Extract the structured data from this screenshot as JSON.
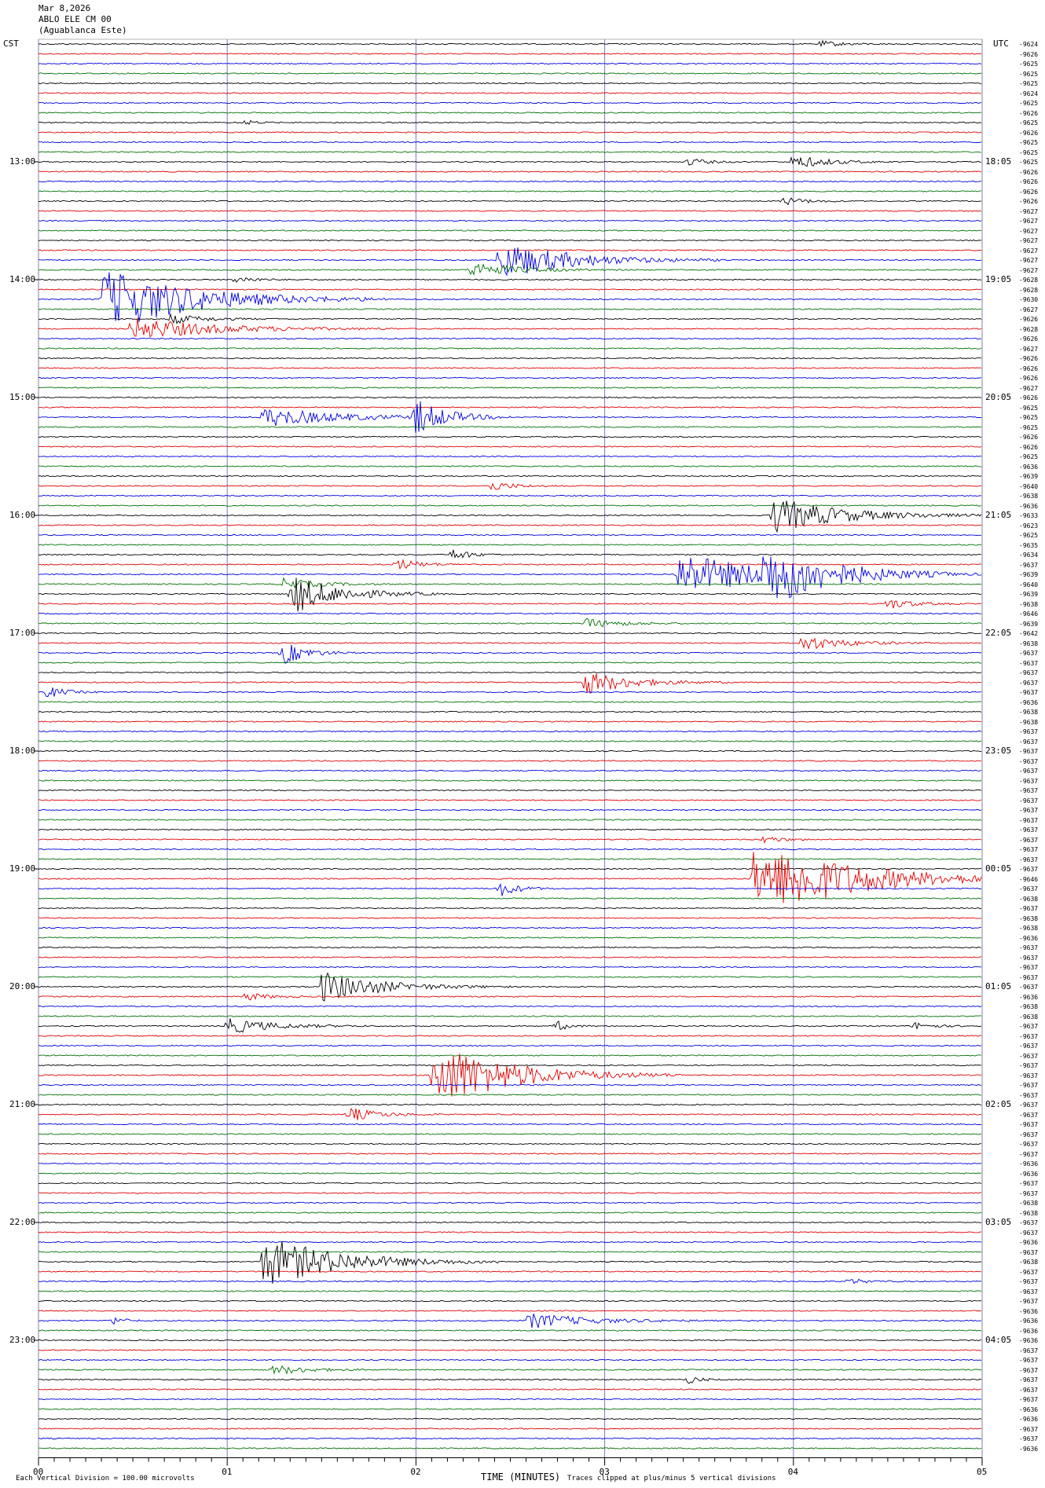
{
  "header": {
    "date": "Mar 8,2026",
    "station": "ABLO ELE CM 00",
    "site": "(Aguablanca Este)"
  },
  "left_timezone": "CST",
  "right_timezone": "UTC",
  "footer": {
    "x_axis_title": "TIME (MINUTES)",
    "scale_note": "Each Vertical Division =  100.00 microvolts",
    "clip_note": "Traces clipped at plus/minus 5 vertical divisions"
  },
  "colors": {
    "trace_cycle": [
      "#000000",
      "#e00000",
      "#0000e0",
      "#007000"
    ],
    "gridline": "#7a7ac0"
  },
  "chart_data": {
    "type": "line",
    "title": "",
    "xlabel": "TIME (MINUTES)",
    "ylabel": "",
    "xlim": [
      0,
      5
    ],
    "x_ticks": [
      "00",
      "01",
      "02",
      "03",
      "04",
      "05"
    ],
    "traces_count": 144,
    "trace_minutes": 5,
    "left_time_labels": [
      "13:00",
      "14:00",
      "15:00",
      "16:00",
      "17:00",
      "18:00",
      "19:00",
      "20:00",
      "21:00",
      "22:00",
      "23:00"
    ],
    "right_time_labels": [
      "18:05",
      "19:05",
      "20:05",
      "21:05",
      "22:05",
      "23:05",
      "00:05",
      "01:05",
      "02:05",
      "03:05",
      "04:05"
    ],
    "label_start_trace": 12,
    "label_every_traces": 12,
    "right_trace_values": [
      "-9624",
      "-9626",
      "-9625",
      "-9625",
      "-9625",
      "-9624",
      "-9625",
      "-9626",
      "-9625",
      "-9626",
      "-9625",
      "-9625",
      "-9625",
      "-9626",
      "-9626",
      "-9626",
      "-9626",
      "-9627",
      "-9627",
      "-9627",
      "-9627",
      "-9627",
      "-9627",
      "-9627",
      "-9628",
      "-9628",
      "-9630",
      "-9627",
      "-9626",
      "-9628",
      "-9626",
      "-9627",
      "-9626",
      "-9626",
      "-9626",
      "-9627",
      "-9626",
      "-9625",
      "-9625",
      "-9625",
      "-9626",
      "-9626",
      "-9625",
      "-9636",
      "-9639",
      "-9640",
      "-9638",
      "-9636",
      "-9633",
      "-9623",
      "-9625",
      "-9635",
      "-9634",
      "-9637",
      "-9639",
      "-9640",
      "-9639",
      "-9638",
      "-9646",
      "-9639",
      "-9642",
      "-9638",
      "-9637",
      "-9637",
      "-9637",
      "-9637",
      "-9637",
      "-9636",
      "-9638",
      "-9638",
      "-9637",
      "-9637",
      "-9637",
      "-9637",
      "-9637",
      "-9637",
      "-9637",
      "-9637",
      "-9637",
      "-9637",
      "-9637",
      "-9637",
      "-9637",
      "-9637",
      "-9637",
      "-9646",
      "-9637",
      "-9638",
      "-9637",
      "-9638",
      "-9638",
      "-9636",
      "-9637",
      "-9637",
      "-9637",
      "-9637",
      "-9637",
      "-9636",
      "-9638",
      "-9638",
      "-9637",
      "-9637",
      "-9637",
      "-9637",
      "-9637",
      "-9637",
      "-9637",
      "-9637",
      "-9637",
      "-9637",
      "-9637",
      "-9637",
      "-9637",
      "-9637",
      "-9636",
      "-9636",
      "-9637",
      "-9637",
      "-9638",
      "-9638",
      "-9637",
      "-9637",
      "-9636",
      "-9637",
      "-9638",
      "-9637",
      "-9637",
      "-9637",
      "-9637",
      "-9636",
      "-9636",
      "-9636",
      "-9636",
      "-9637",
      "-9637",
      "-9637",
      "-9637",
      "-9637",
      "-9637",
      "-9636",
      "-9636",
      "-9637",
      "-9637",
      "-9636"
    ],
    "events": [
      {
        "trace": 0,
        "minute": 4.15,
        "amp": 0.3,
        "dur": 0.4
      },
      {
        "trace": 8,
        "minute": 1.1,
        "amp": 0.25,
        "dur": 0.2
      },
      {
        "trace": 12,
        "minute": 3.45,
        "amp": 0.4,
        "dur": 0.3
      },
      {
        "trace": 12,
        "minute": 4.0,
        "amp": 0.7,
        "dur": 0.6
      },
      {
        "trace": 16,
        "minute": 3.95,
        "amp": 0.4,
        "dur": 0.4
      },
      {
        "trace": 22,
        "minute": 2.45,
        "amp": 2.0,
        "dur": 1.2
      },
      {
        "trace": 23,
        "minute": 2.3,
        "amp": 0.8,
        "dur": 0.8
      },
      {
        "trace": 24,
        "minute": 1.05,
        "amp": 0.4,
        "dur": 0.3
      },
      {
        "trace": 26,
        "minute": 0.35,
        "amp": 3.5,
        "dur": 1.5
      },
      {
        "trace": 28,
        "minute": 0.7,
        "amp": 0.5,
        "dur": 0.6
      },
      {
        "trace": 29,
        "minute": 0.5,
        "amp": 1.2,
        "dur": 1.4
      },
      {
        "trace": 38,
        "minute": 1.2,
        "amp": 1.0,
        "dur": 1.3
      },
      {
        "trace": 38,
        "minute": 2.0,
        "amp": 1.8,
        "dur": 0.5
      },
      {
        "trace": 45,
        "minute": 2.4,
        "amp": 0.5,
        "dur": 0.4
      },
      {
        "trace": 48,
        "minute": 3.9,
        "amp": 1.8,
        "dur": 1.2
      },
      {
        "trace": 52,
        "minute": 2.2,
        "amp": 0.6,
        "dur": 0.3
      },
      {
        "trace": 53,
        "minute": 1.9,
        "amp": 0.6,
        "dur": 0.4
      },
      {
        "trace": 54,
        "minute": 3.4,
        "amp": 2.2,
        "dur": 1.6
      },
      {
        "trace": 54,
        "minute": 3.85,
        "amp": 3.0,
        "dur": 1.0
      },
      {
        "trace": 55,
        "minute": 1.3,
        "amp": 0.6,
        "dur": 0.6
      },
      {
        "trace": 56,
        "minute": 1.35,
        "amp": 2.0,
        "dur": 0.8
      },
      {
        "trace": 57,
        "minute": 4.5,
        "amp": 0.6,
        "dur": 0.4
      },
      {
        "trace": 59,
        "minute": 2.9,
        "amp": 0.5,
        "dur": 0.6
      },
      {
        "trace": 61,
        "minute": 4.05,
        "amp": 0.8,
        "dur": 0.7
      },
      {
        "trace": 62,
        "minute": 1.3,
        "amp": 1.2,
        "dur": 0.4
      },
      {
        "trace": 65,
        "minute": 2.9,
        "amp": 1.2,
        "dur": 0.8
      },
      {
        "trace": 66,
        "minute": 0.05,
        "amp": 0.6,
        "dur": 0.3
      },
      {
        "trace": 81,
        "minute": 3.85,
        "amp": 0.4,
        "dur": 0.3
      },
      {
        "trace": 85,
        "minute": 3.8,
        "amp": 4.5,
        "dur": 1.6
      },
      {
        "trace": 86,
        "minute": 2.45,
        "amp": 0.8,
        "dur": 0.3
      },
      {
        "trace": 96,
        "minute": 1.5,
        "amp": 1.6,
        "dur": 1.0
      },
      {
        "trace": 97,
        "minute": 1.1,
        "amp": 0.4,
        "dur": 0.4
      },
      {
        "trace": 100,
        "minute": 1.0,
        "amp": 0.8,
        "dur": 0.8
      },
      {
        "trace": 100,
        "minute": 2.75,
        "amp": 0.5,
        "dur": 0.2
      },
      {
        "trace": 100,
        "minute": 4.65,
        "amp": 0.4,
        "dur": 0.3
      },
      {
        "trace": 105,
        "minute": 2.1,
        "amp": 3.5,
        "dur": 1.3
      },
      {
        "trace": 109,
        "minute": 1.65,
        "amp": 0.7,
        "dur": 0.5
      },
      {
        "trace": 124,
        "minute": 1.2,
        "amp": 2.6,
        "dur": 1.3
      },
      {
        "trace": 126,
        "minute": 4.3,
        "amp": 0.3,
        "dur": 0.3
      },
      {
        "trace": 130,
        "minute": 0.4,
        "amp": 0.4,
        "dur": 0.2
      },
      {
        "trace": 130,
        "minute": 2.6,
        "amp": 0.8,
        "dur": 1.0
      },
      {
        "trace": 135,
        "minute": 1.25,
        "amp": 0.5,
        "dur": 0.6
      },
      {
        "trace": 136,
        "minute": 3.45,
        "amp": 0.4,
        "dur": 0.2
      }
    ]
  }
}
